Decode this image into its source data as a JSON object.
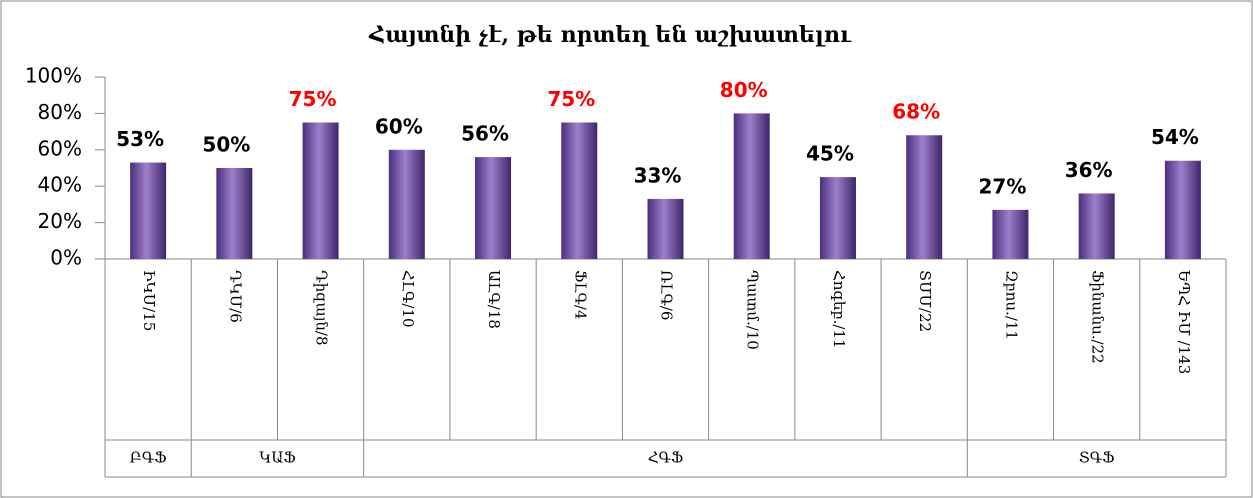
{
  "chart_data": {
    "type": "bar",
    "title": "Հայտնի չէ, թե որտեղ են աշխատելու",
    "categories": [
      "ԻԿՄ/15",
      "ԴԿՄ/6",
      "Դիզայն/8",
      "ՀԼԳ/10",
      "ԱԼԳ/18",
      "ՖԼԳ/4",
      "ՌԼԳ/6",
      "Պատմ./10",
      "Հոգեբ./11",
      "ՏՄՄ/22",
      "Զբոս./11",
      "Ֆինանս./22",
      "ԵՊՀ ԻՄ /143"
    ],
    "values": [
      53,
      50,
      75,
      60,
      56,
      75,
      33,
      80,
      45,
      68,
      27,
      36,
      54
    ],
    "value_labels": [
      "53%",
      "50%",
      "75%",
      "60%",
      "56%",
      "75%",
      "33%",
      "80%",
      "45%",
      "68%",
      "27%",
      "36%",
      "54%"
    ],
    "value_label_colors": [
      "#000000",
      "#000000",
      "#ff0000",
      "#000000",
      "#000000",
      "#ff0000",
      "#000000",
      "#ff0000",
      "#000000",
      "#ff0000",
      "#000000",
      "#000000",
      "#000000"
    ],
    "color": "#7b5fb0",
    "groups": [
      {
        "name": "ԲԳՖ",
        "count": 1
      },
      {
        "name": "ԿԱՖ",
        "count": 2
      },
      {
        "name": "ՀԳՖ",
        "count": 7
      },
      {
        "name": "ՏԳՖ",
        "count": 3
      }
    ],
    "ylim": [
      0,
      100
    ],
    "yticks": [
      {
        "value": 0,
        "label": "0%"
      },
      {
        "value": 20,
        "label": "20%"
      },
      {
        "value": 40,
        "label": "40%"
      },
      {
        "value": 60,
        "label": "60%"
      },
      {
        "value": 80,
        "label": "80%"
      },
      {
        "value": 100,
        "label": "100%"
      }
    ],
    "grid": false
  }
}
